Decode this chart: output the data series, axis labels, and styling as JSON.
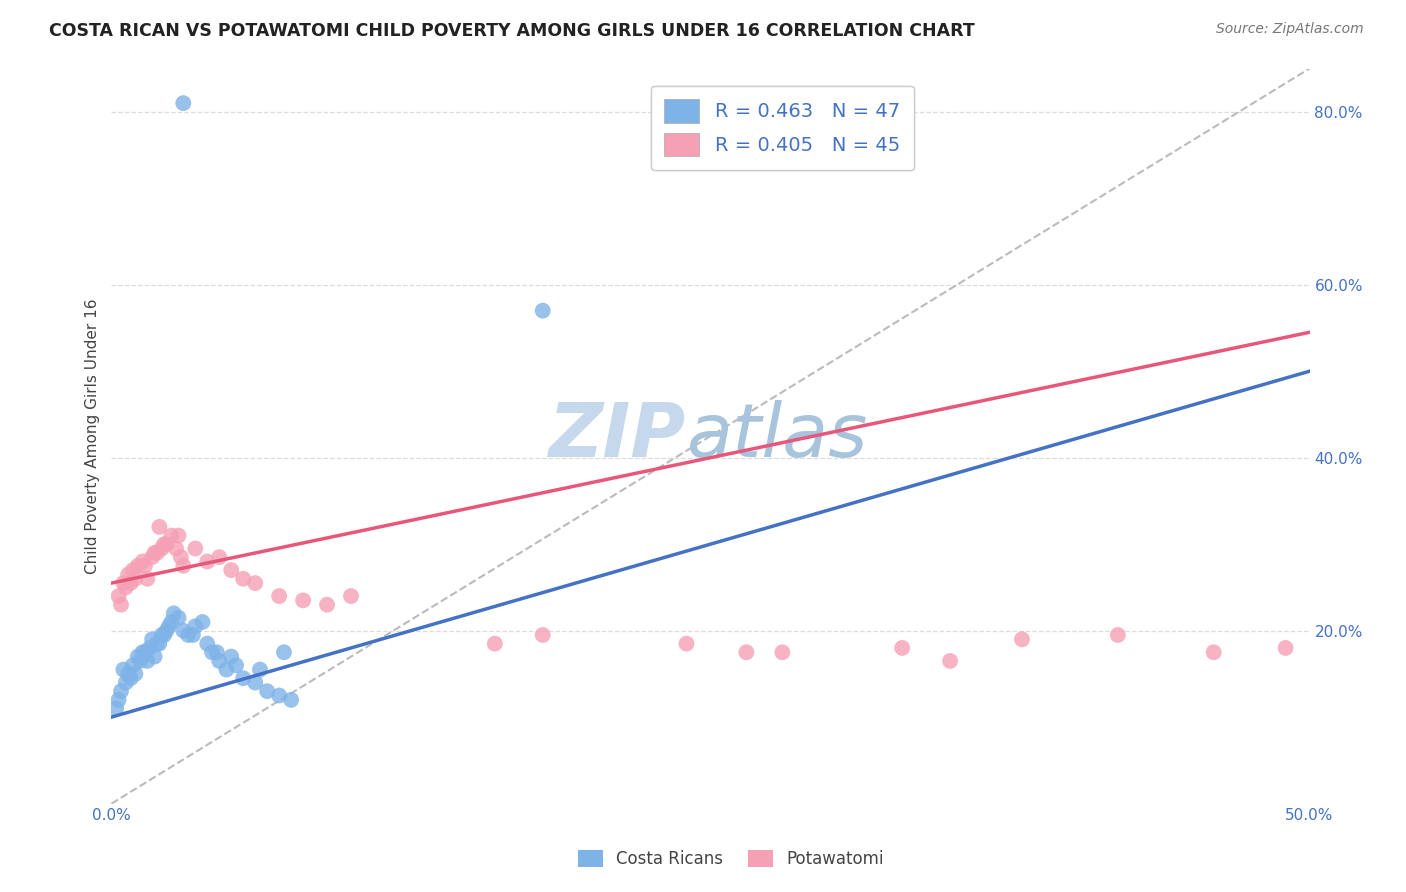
{
  "title": "COSTA RICAN VS POTAWATOMI CHILD POVERTY AMONG GIRLS UNDER 16 CORRELATION CHART",
  "source": "Source: ZipAtlas.com",
  "ylabel": "Child Poverty Among Girls Under 16",
  "xlim": [
    0.0,
    0.5
  ],
  "ylim": [
    0.0,
    0.85
  ],
  "xtick_positions": [
    0.0,
    0.5
  ],
  "xticklabels": [
    "0.0%",
    "50.0%"
  ],
  "ytick_positions": [
    0.2,
    0.4,
    0.6,
    0.8
  ],
  "yticklabels": [
    "20.0%",
    "40.0%",
    "60.0%",
    "80.0%"
  ],
  "grid_yticks": [
    0.2,
    0.4,
    0.6,
    0.8
  ],
  "blue_color": "#7EB3E8",
  "pink_color": "#F5A0B5",
  "blue_line_color": "#4472C4",
  "pink_line_color": "#E8577A",
  "blue_r": 0.463,
  "blue_n": 47,
  "pink_r": 0.405,
  "pink_n": 45,
  "legend_label_blue": "Costa Ricans",
  "legend_label_pink": "Potawatomi",
  "watermark_zip": "ZIP",
  "watermark_atlas": "atlas",
  "watermark_color_zip": "#C5D8EC",
  "watermark_color_atlas": "#A8C4DC",
  "background_color": "#FFFFFF",
  "grid_color": "#DDDDDD",
  "blue_scatter_x": [
    0.005,
    0.008,
    0.01,
    0.012,
    0.014,
    0.016,
    0.018,
    0.02,
    0.022,
    0.003,
    0.006,
    0.009,
    0.011,
    0.013,
    0.015,
    0.017,
    0.019,
    0.021,
    0.023,
    0.025,
    0.004,
    0.007,
    0.024,
    0.028,
    0.03,
    0.032,
    0.035,
    0.038,
    0.04,
    0.042,
    0.045,
    0.048,
    0.05,
    0.055,
    0.06,
    0.065,
    0.07,
    0.075,
    0.002,
    0.026,
    0.034,
    0.044,
    0.052,
    0.062,
    0.072,
    0.18,
    0.03
  ],
  "blue_scatter_y": [
    0.155,
    0.145,
    0.15,
    0.165,
    0.175,
    0.18,
    0.17,
    0.185,
    0.195,
    0.12,
    0.14,
    0.16,
    0.17,
    0.175,
    0.165,
    0.19,
    0.185,
    0.195,
    0.2,
    0.21,
    0.13,
    0.15,
    0.205,
    0.215,
    0.2,
    0.195,
    0.205,
    0.21,
    0.185,
    0.175,
    0.165,
    0.155,
    0.17,
    0.145,
    0.14,
    0.13,
    0.125,
    0.12,
    0.11,
    0.22,
    0.195,
    0.175,
    0.16,
    0.155,
    0.175,
    0.57,
    0.81
  ],
  "pink_scatter_x": [
    0.003,
    0.005,
    0.007,
    0.009,
    0.011,
    0.013,
    0.015,
    0.017,
    0.019,
    0.021,
    0.023,
    0.025,
    0.027,
    0.029,
    0.004,
    0.006,
    0.008,
    0.01,
    0.014,
    0.018,
    0.022,
    0.028,
    0.035,
    0.04,
    0.05,
    0.06,
    0.07,
    0.08,
    0.09,
    0.1,
    0.02,
    0.03,
    0.045,
    0.055,
    0.18,
    0.24,
    0.28,
    0.33,
    0.38,
    0.42,
    0.46,
    0.49,
    0.16,
    0.265,
    0.35
  ],
  "pink_scatter_y": [
    0.24,
    0.255,
    0.265,
    0.27,
    0.275,
    0.28,
    0.26,
    0.285,
    0.29,
    0.295,
    0.3,
    0.31,
    0.295,
    0.285,
    0.23,
    0.25,
    0.255,
    0.26,
    0.275,
    0.29,
    0.3,
    0.31,
    0.295,
    0.28,
    0.27,
    0.255,
    0.24,
    0.235,
    0.23,
    0.24,
    0.32,
    0.275,
    0.285,
    0.26,
    0.195,
    0.185,
    0.175,
    0.18,
    0.19,
    0.195,
    0.175,
    0.18,
    0.185,
    0.175,
    0.165
  ]
}
